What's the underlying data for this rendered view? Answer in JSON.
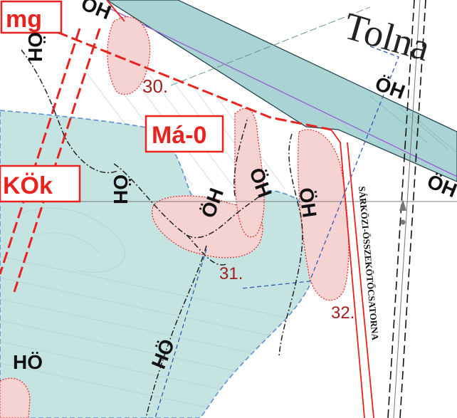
{
  "zones": {
    "top_left": "mg",
    "center": "Má-0",
    "left": "KÖk"
  },
  "oh_label": "ÖH",
  "ho_label": "HÖ",
  "place_name": "Tolna",
  "canal_name": "SÁRKÖZI-ÖSSZEKÖTŐCSATORNA",
  "parcel_numbers": {
    "p30": "30.",
    "p31": "31.",
    "p32": "32."
  },
  "colors": {
    "protected_area_fill": "#c5e3e0",
    "protected_area_border": "#5b8fd1",
    "regulation_line": "#e8231f",
    "habitat_fill": "#f6d3d3",
    "habitat_border": "#e8231f",
    "river_fill": "#a9d4d3",
    "ecological_trail": "#222222"
  }
}
